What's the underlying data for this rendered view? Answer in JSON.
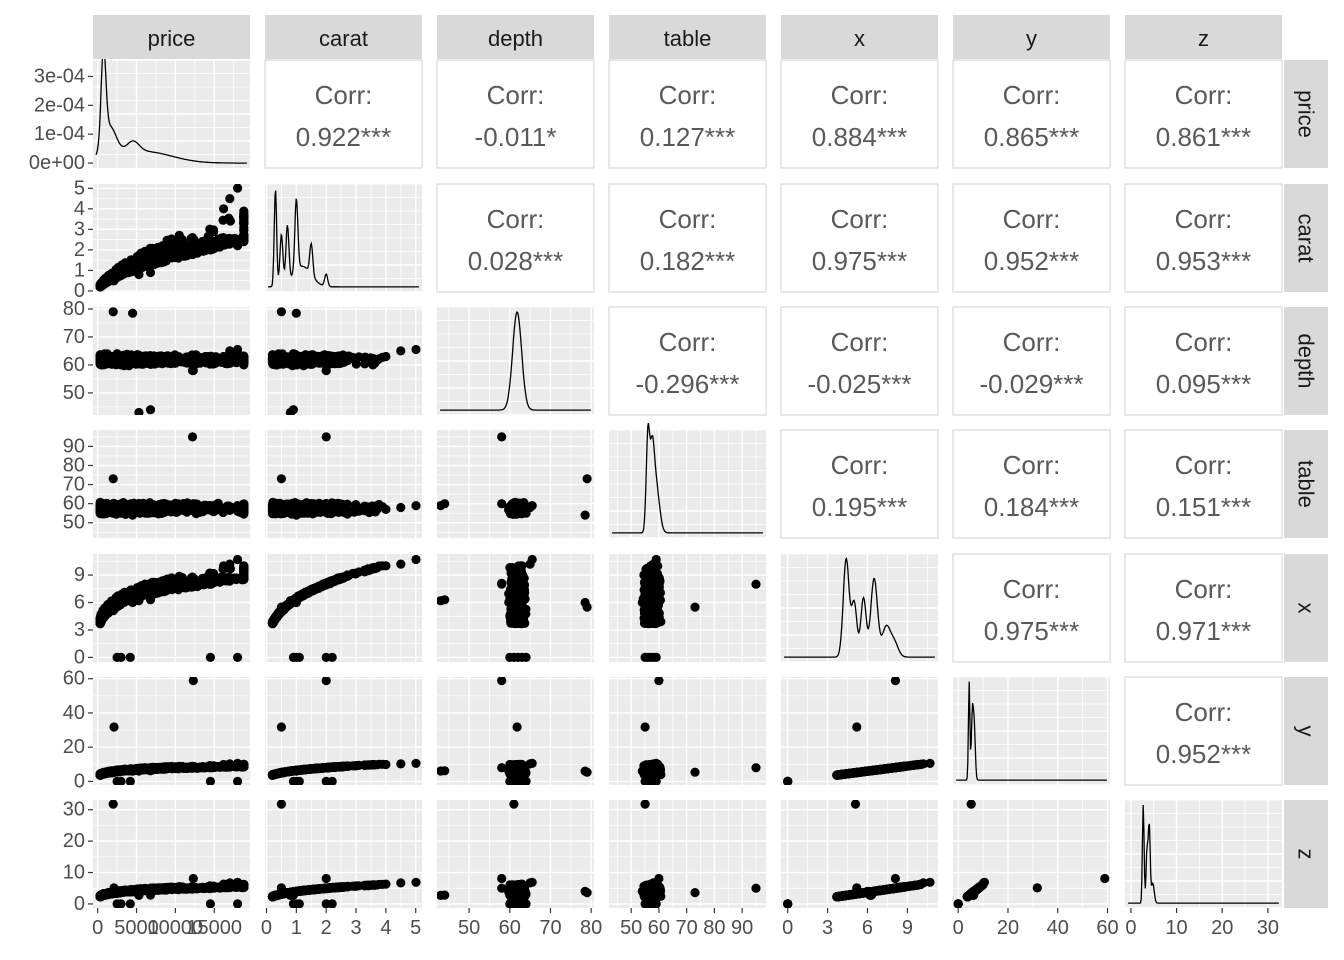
{
  "chart_data": {
    "type": "scatter",
    "layout": "pairs-matrix",
    "variables": [
      "price",
      "carat",
      "depth",
      "table",
      "x",
      "y",
      "z"
    ],
    "ranges": {
      "price": [
        -600,
        19600
      ],
      "carat": [
        -0.05,
        5.21
      ],
      "depth": [
        42.1,
        80.7
      ],
      "table": [
        42.0,
        98.6
      ],
      "x": [
        -0.5,
        11.3
      ],
      "y": [
        -2.1,
        61.0
      ],
      "z": [
        -1.3,
        33.1
      ]
    },
    "ticks": {
      "price": [
        0,
        5000,
        10000,
        15000
      ],
      "carat": [
        0,
        1,
        2,
        3,
        4,
        5
      ],
      "depth": [
        50,
        60,
        70,
        80
      ],
      "table": [
        50,
        60,
        70,
        80,
        90
      ],
      "x": [
        0,
        3,
        6,
        9
      ],
      "y": [
        0,
        20,
        40,
        60
      ],
      "z": [
        0,
        10,
        20,
        30
      ]
    },
    "tick_labels": {
      "price": [
        "0",
        "5000",
        "10000",
        "15000"
      ],
      "carat": [
        "0",
        "1",
        "2",
        "3",
        "4",
        "5"
      ],
      "depth": [
        "50",
        "60",
        "70",
        "80"
      ],
      "table": [
        "50",
        "60",
        "70",
        "80",
        "90"
      ],
      "x": [
        "0",
        "3",
        "6",
        "9"
      ],
      "y": [
        "0",
        "20",
        "40",
        "60"
      ],
      "z": [
        "0",
        "10",
        "20",
        "30"
      ]
    },
    "price_density_axis": {
      "range": [
        -1.7e-05,
        0.000357
      ],
      "ticks": [
        0,
        0.0001,
        0.0002,
        0.0003
      ],
      "tick_labels": [
        "0e+00",
        "1e-04",
        "2e-04",
        "3e-04"
      ]
    },
    "correlations": {
      "price|carat": "0.922***",
      "price|depth": "-0.011*",
      "price|table": "0.127***",
      "price|x": "0.884***",
      "price|y": "0.865***",
      "price|z": "0.861***",
      "carat|depth": "0.028***",
      "carat|table": "0.182***",
      "carat|x": "0.975***",
      "carat|y": "0.952***",
      "carat|z": "0.953***",
      "depth|table": "-0.296***",
      "depth|x": "-0.025***",
      "depth|y": "-0.029***",
      "depth|z": "0.095***",
      "table|x": "0.195***",
      "table|y": "0.184***",
      "table|z": "0.151***",
      "x|y": "0.975***",
      "x|z": "0.971***",
      "y|z": "0.952***"
    },
    "corr_label": "Corr:",
    "grid": true,
    "colors": {
      "panel": "#ebebeb",
      "strip": "#d9d9d9",
      "grid": "#ffffff",
      "points": "#000000",
      "corr_text": "#595959",
      "border": "#d9d9d9"
    }
  }
}
